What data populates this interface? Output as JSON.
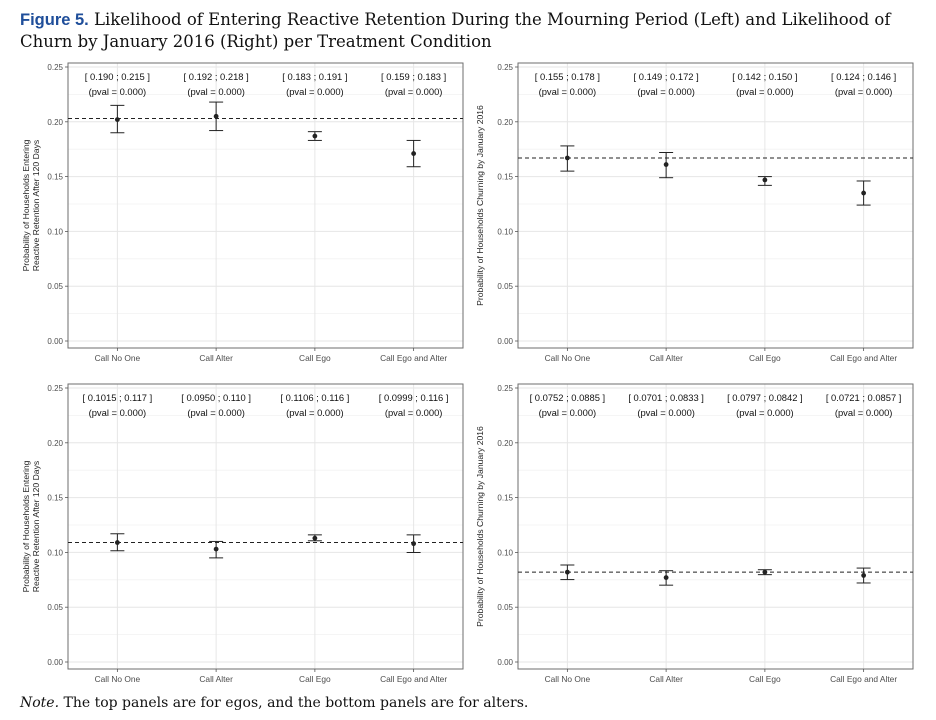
{
  "figure": {
    "label": "Figure 5.",
    "caption": "Likelihood of Entering Reactive Retention During the Mourning Period (Left) and Likelihood of Churn by January 2016 (Right) per Treatment Condition",
    "note_label": "Note.",
    "note_text": "The top panels are for egos, and the bottom panels are for alters."
  },
  "chart_data": [
    {
      "type": "scatter",
      "ylabel": [
        "Probability of Households Entering",
        "Reactive Retention After 120 Days"
      ],
      "ylim": [
        0,
        0.25
      ],
      "yticks": [
        "0.00",
        "0.05",
        "0.10",
        "0.15",
        "0.20",
        "0.25"
      ],
      "grid": true,
      "categories": [
        "Call No One",
        "Call Alter",
        "Call Ego",
        "Call Ego and Alter"
      ],
      "values": [
        0.202,
        0.205,
        0.187,
        0.171
      ],
      "ci_low": [
        0.19,
        0.192,
        0.183,
        0.159
      ],
      "ci_high": [
        0.215,
        0.218,
        0.191,
        0.183
      ],
      "ci_text": [
        "[ 0.190 ; 0.215 ]",
        "[ 0.192 ; 0.218 ]",
        "[ 0.183 ; 0.191 ]",
        "[ 0.159 ; 0.183 ]"
      ],
      "pval_text": [
        "(pval = 0.000)",
        "(pval = 0.000)",
        "(pval = 0.000)",
        "(pval = 0.000)"
      ],
      "reference_line": 0.203
    },
    {
      "type": "scatter",
      "ylabel": [
        "Probability of Households Churning by January 2016"
      ],
      "ylim": [
        0,
        0.25
      ],
      "yticks": [
        "0.00",
        "0.05",
        "0.10",
        "0.15",
        "0.20",
        "0.25"
      ],
      "grid": true,
      "categories": [
        "Call No One",
        "Call Alter",
        "Call Ego",
        "Call Ego and Alter"
      ],
      "values": [
        0.167,
        0.161,
        0.147,
        0.135
      ],
      "ci_low": [
        0.155,
        0.149,
        0.142,
        0.124
      ],
      "ci_high": [
        0.178,
        0.172,
        0.15,
        0.146
      ],
      "ci_text": [
        "[ 0.155 ; 0.178 ]",
        "[ 0.149 ; 0.172 ]",
        "[ 0.142 ; 0.150 ]",
        "[ 0.124 ; 0.146 ]"
      ],
      "pval_text": [
        "(pval = 0.000)",
        "(pval = 0.000)",
        "(pval = 0.000)",
        "(pval = 0.000)"
      ],
      "reference_line": 0.167
    },
    {
      "type": "scatter",
      "ylabel": [
        "Probability of Households Entering",
        "Reactive Retention After 120 Days"
      ],
      "ylim": [
        0,
        0.25
      ],
      "yticks": [
        "0.00",
        "0.05",
        "0.10",
        "0.15",
        "0.20",
        "0.25"
      ],
      "grid": true,
      "categories": [
        "Call No One",
        "Call Alter",
        "Call Ego",
        "Call Ego and Alter"
      ],
      "values": [
        0.109,
        0.103,
        0.113,
        0.108
      ],
      "ci_low": [
        0.1015,
        0.095,
        0.1106,
        0.0999
      ],
      "ci_high": [
        0.117,
        0.11,
        0.116,
        0.116
      ],
      "ci_text": [
        "[ 0.1015 ; 0.117 ]",
        "[ 0.0950 ; 0.110 ]",
        "[ 0.1106 ; 0.116 ]",
        "[ 0.0999 ; 0.116 ]"
      ],
      "pval_text": [
        "(pval = 0.000)",
        "(pval = 0.000)",
        "(pval = 0.000)",
        "(pval = 0.000)"
      ],
      "reference_line": 0.109
    },
    {
      "type": "scatter",
      "ylabel": [
        "Probability of Households Churning by January 2016"
      ],
      "ylim": [
        0,
        0.25
      ],
      "yticks": [
        "0.00",
        "0.05",
        "0.10",
        "0.15",
        "0.20",
        "0.25"
      ],
      "grid": true,
      "categories": [
        "Call No One",
        "Call Alter",
        "Call Ego",
        "Call Ego and Alter"
      ],
      "values": [
        0.082,
        0.077,
        0.082,
        0.079
      ],
      "ci_low": [
        0.0752,
        0.0701,
        0.0797,
        0.0721
      ],
      "ci_high": [
        0.0885,
        0.0833,
        0.0842,
        0.0857
      ],
      "ci_text": [
        "[ 0.0752 ; 0.0885 ]",
        "[ 0.0701 ; 0.0833 ]",
        "[ 0.0797 ; 0.0842 ]",
        "[ 0.0721 ; 0.0857 ]"
      ],
      "pval_text": [
        "(pval = 0.000)",
        "(pval = 0.000)",
        "(pval = 0.000)",
        "(pval = 0.000)"
      ],
      "reference_line": 0.082
    }
  ]
}
